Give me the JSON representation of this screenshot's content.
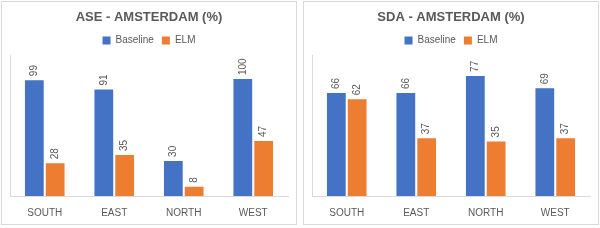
{
  "chart_data": [
    {
      "type": "bar",
      "title": "ASE - AMSTERDAM (%)",
      "categories": [
        "SOUTH",
        "EAST",
        "NORTH",
        "WEST"
      ],
      "series": [
        {
          "name": "Baseline",
          "color": "#4472c4",
          "values": [
            99,
            91,
            30,
            100
          ]
        },
        {
          "name": "ELM",
          "color": "#ed7d31",
          "values": [
            28,
            35,
            8,
            47
          ]
        }
      ],
      "ylim": [
        0,
        120
      ],
      "grid": false,
      "legend": "top",
      "data_labels": true,
      "tick_labels": "x"
    },
    {
      "type": "bar",
      "title": "SDA - AMSTERDAM (%)",
      "categories": [
        "SOUTH",
        "EAST",
        "NORTH",
        "WEST"
      ],
      "series": [
        {
          "name": "Baseline",
          "color": "#4472c4",
          "values": [
            66,
            66,
            77,
            69
          ]
        },
        {
          "name": "ELM",
          "color": "#ed7d31",
          "values": [
            62,
            37,
            35,
            37
          ]
        }
      ],
      "ylim": [
        0,
        90
      ],
      "grid": false,
      "legend": "top",
      "data_labels": true,
      "tick_labels": "x"
    }
  ]
}
